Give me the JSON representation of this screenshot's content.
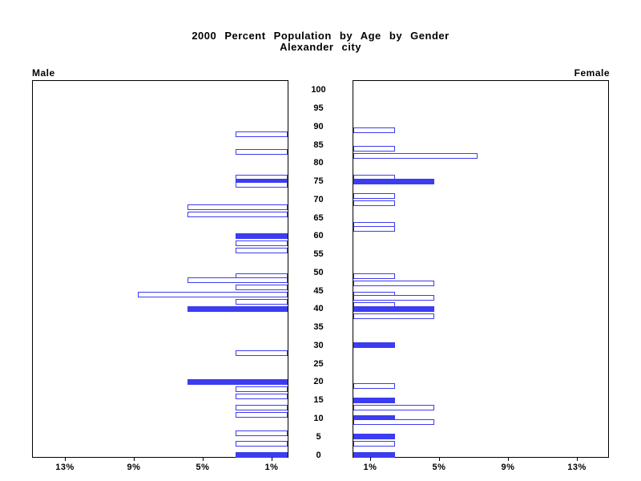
{
  "title": {
    "line1": "2000 Percent Population by Age by Gender",
    "line2": "Alexander city"
  },
  "panels": {
    "left_label": "Male",
    "right_label": "Female"
  },
  "colors": {
    "bar_blue": "#3C3CF0",
    "axis_black": "#000000",
    "background": "#FFFFFF"
  },
  "chart_data": {
    "type": "bar",
    "subtype": "population-pyramid",
    "title": "2000 Percent Population by Age by Gender",
    "subtitle": "Alexander city",
    "grid": false,
    "legend": "none",
    "pct_axis": {
      "ticks": [
        1,
        5,
        9,
        13
      ],
      "tick_suffix": "%",
      "max": 14.8,
      "left_panel_direction": "right-to-left",
      "right_panel_direction": "left-to-right"
    },
    "age_axis": {
      "min": 0,
      "max": 100,
      "step": 5,
      "position": "center"
    },
    "series": [
      {
        "name": "Male",
        "side": "left",
        "bars": [
          {
            "age": 88,
            "pct": 3.0,
            "filled": false
          },
          {
            "age": 83,
            "pct": 3.0,
            "filled": false
          },
          {
            "age": 76,
            "pct": 3.0,
            "filled": false
          },
          {
            "age": 75,
            "pct": 3.0,
            "filled": true
          },
          {
            "age": 74,
            "pct": 3.0,
            "filled": false
          },
          {
            "age": 68,
            "pct": 5.8,
            "filled": false
          },
          {
            "age": 66,
            "pct": 5.8,
            "filled": false
          },
          {
            "age": 60,
            "pct": 3.0,
            "filled": true
          },
          {
            "age": 58,
            "pct": 3.0,
            "filled": false
          },
          {
            "age": 56,
            "pct": 3.0,
            "filled": false
          },
          {
            "age": 49,
            "pct": 3.0,
            "filled": false
          },
          {
            "age": 48,
            "pct": 5.8,
            "filled": false
          },
          {
            "age": 46,
            "pct": 3.0,
            "filled": false
          },
          {
            "age": 44,
            "pct": 8.7,
            "filled": false
          },
          {
            "age": 42,
            "pct": 3.0,
            "filled": false
          },
          {
            "age": 40,
            "pct": 5.8,
            "filled": true
          },
          {
            "age": 28,
            "pct": 3.0,
            "filled": false
          },
          {
            "age": 20,
            "pct": 5.8,
            "filled": true
          },
          {
            "age": 18,
            "pct": 3.0,
            "filled": false
          },
          {
            "age": 16,
            "pct": 3.0,
            "filled": false
          },
          {
            "age": 13,
            "pct": 3.0,
            "filled": false
          },
          {
            "age": 11,
            "pct": 3.0,
            "filled": false
          },
          {
            "age": 6,
            "pct": 3.0,
            "filled": false
          },
          {
            "age": 3,
            "pct": 3.0,
            "filled": false
          },
          {
            "age": 0,
            "pct": 3.0,
            "filled": true
          }
        ]
      },
      {
        "name": "Female",
        "side": "right",
        "bars": [
          {
            "age": 89,
            "pct": 2.4,
            "filled": false
          },
          {
            "age": 84,
            "pct": 2.4,
            "filled": false
          },
          {
            "age": 82,
            "pct": 7.2,
            "filled": false
          },
          {
            "age": 76,
            "pct": 2.4,
            "filled": false
          },
          {
            "age": 75,
            "pct": 4.7,
            "filled": true
          },
          {
            "age": 71,
            "pct": 2.4,
            "filled": false
          },
          {
            "age": 69,
            "pct": 2.4,
            "filled": false
          },
          {
            "age": 63,
            "pct": 2.4,
            "filled": false
          },
          {
            "age": 62,
            "pct": 2.4,
            "filled": false
          },
          {
            "age": 49,
            "pct": 2.4,
            "filled": false
          },
          {
            "age": 47,
            "pct": 4.7,
            "filled": false
          },
          {
            "age": 44,
            "pct": 2.4,
            "filled": false
          },
          {
            "age": 43,
            "pct": 4.7,
            "filled": false
          },
          {
            "age": 41,
            "pct": 2.4,
            "filled": false
          },
          {
            "age": 40,
            "pct": 4.7,
            "filled": true
          },
          {
            "age": 38,
            "pct": 4.7,
            "filled": false
          },
          {
            "age": 30,
            "pct": 2.4,
            "filled": true
          },
          {
            "age": 19,
            "pct": 2.4,
            "filled": false
          },
          {
            "age": 15,
            "pct": 2.4,
            "filled": true
          },
          {
            "age": 13,
            "pct": 4.7,
            "filled": false
          },
          {
            "age": 10,
            "pct": 2.4,
            "filled": true
          },
          {
            "age": 9,
            "pct": 4.7,
            "filled": false
          },
          {
            "age": 5,
            "pct": 2.4,
            "filled": true
          },
          {
            "age": 3,
            "pct": 2.4,
            "filled": false
          },
          {
            "age": 0,
            "pct": 2.4,
            "filled": true
          }
        ]
      }
    ]
  }
}
